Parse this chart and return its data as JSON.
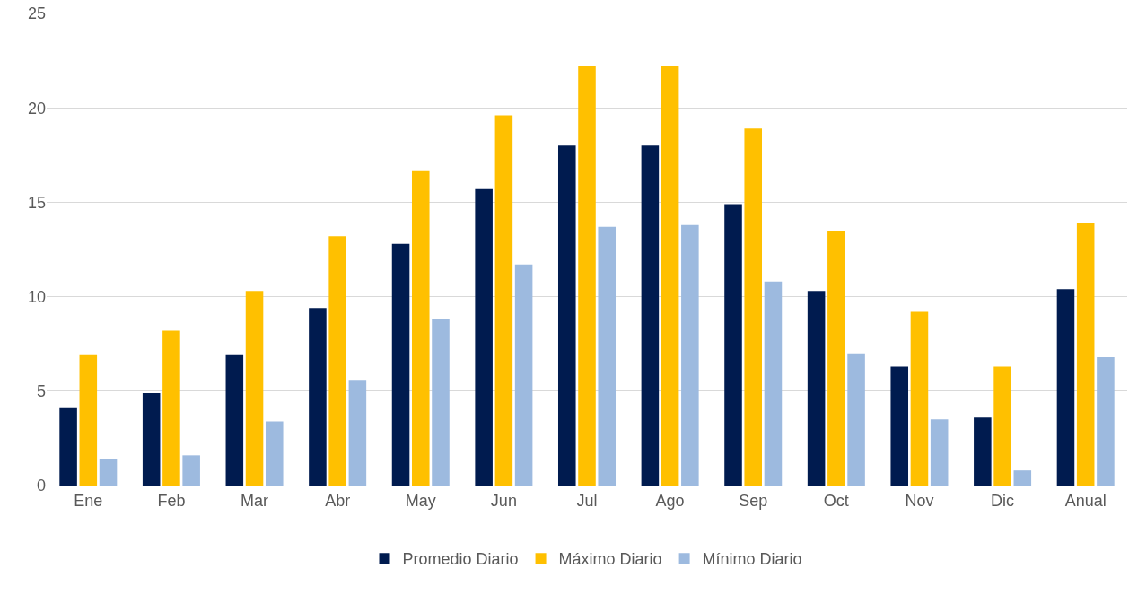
{
  "chart_data": {
    "type": "bar",
    "categories": [
      "Ene",
      "Feb",
      "Mar",
      "Abr",
      "May",
      "Jun",
      "Jul",
      "Ago",
      "Sep",
      "Oct",
      "Nov",
      "Dic",
      "Anual"
    ],
    "series": [
      {
        "name": "Promedio Diario",
        "color": "#001b4f",
        "values": [
          4.1,
          4.9,
          6.9,
          9.4,
          12.8,
          15.7,
          18.0,
          18.0,
          14.9,
          10.3,
          6.3,
          3.6,
          10.4
        ]
      },
      {
        "name": "Máximo Diario",
        "color": "#ffc000",
        "values": [
          6.9,
          8.2,
          10.3,
          13.2,
          16.7,
          19.6,
          22.2,
          22.2,
          18.9,
          13.5,
          9.2,
          6.3,
          13.9
        ]
      },
      {
        "name": "Mínimo Diario",
        "color": "#9dbadf",
        "values": [
          1.4,
          1.6,
          3.4,
          5.6,
          8.8,
          11.7,
          13.7,
          13.8,
          10.8,
          7.0,
          3.5,
          0.8,
          6.8
        ]
      }
    ],
    "ylim": [
      0,
      25
    ],
    "yticks": [
      0,
      5,
      10,
      15,
      20,
      25
    ],
    "grid": "y",
    "legend": "bottom"
  }
}
